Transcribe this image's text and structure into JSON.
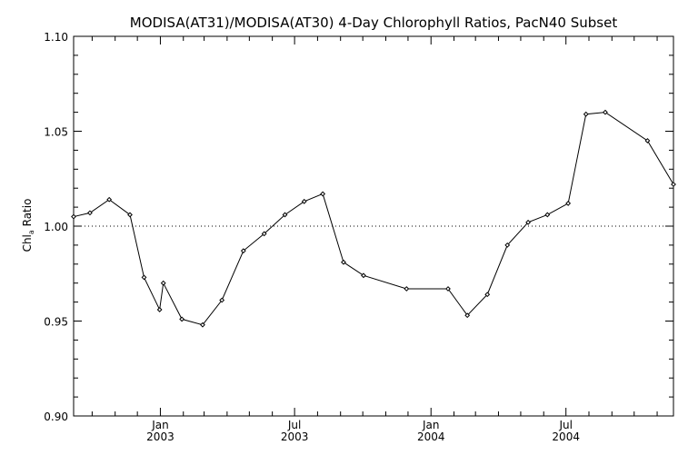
{
  "chart_data": {
    "type": "line",
    "title": "MODISA(AT31)/MODISA(AT30) 4-Day Chlorophyll Ratios, PacN40 Subset",
    "ylabel": {
      "base": "Chl",
      "sub": "a",
      "rest": " Ratio"
    },
    "xlabel": "",
    "xlim": [
      "2002-09-06",
      "2004-11-23"
    ],
    "ylim": [
      0.9,
      1.1
    ],
    "y_ticks": [
      "0.90",
      "0.95",
      "1.00",
      "1.05",
      "1.10"
    ],
    "x_ticks": [
      {
        "date": "2003-01-01",
        "month": "Jan",
        "year": "2003"
      },
      {
        "date": "2003-07-01",
        "month": "Jul",
        "year": "2003"
      },
      {
        "date": "2004-01-01",
        "month": "Jan",
        "year": "2004"
      },
      {
        "date": "2004-07-01",
        "month": "Jul",
        "year": "2004"
      }
    ],
    "reference_line": {
      "y": 1.0,
      "style": "dotted"
    },
    "grid": false,
    "series": [
      {
        "color": "#000000",
        "marker": "diamond",
        "points": [
          {
            "x": "2002-09-06",
            "y": 1.005
          },
          {
            "x": "2002-09-28",
            "y": 1.007
          },
          {
            "x": "2002-10-24",
            "y": 1.014
          },
          {
            "x": "2002-11-21",
            "y": 1.006
          },
          {
            "x": "2002-12-10",
            "y": 0.973
          },
          {
            "x": "2002-12-31",
            "y": 0.956
          },
          {
            "x": "2003-01-05",
            "y": 0.97
          },
          {
            "x": "2003-01-30",
            "y": 0.951
          },
          {
            "x": "2003-02-27",
            "y": 0.948
          },
          {
            "x": "2003-03-25",
            "y": 0.961
          },
          {
            "x": "2003-04-23",
            "y": 0.987
          },
          {
            "x": "2003-05-21",
            "y": 0.996
          },
          {
            "x": "2003-06-18",
            "y": 1.006
          },
          {
            "x": "2003-07-14",
            "y": 1.013
          },
          {
            "x": "2003-08-08",
            "y": 1.017
          },
          {
            "x": "2003-09-05",
            "y": 0.981
          },
          {
            "x": "2003-10-02",
            "y": 0.974
          },
          {
            "x": "2003-11-29",
            "y": 0.967
          },
          {
            "x": "2004-01-24",
            "y": 0.967
          },
          {
            "x": "2004-02-19",
            "y": 0.953
          },
          {
            "x": "2004-03-17",
            "y": 0.964
          },
          {
            "x": "2004-04-13",
            "y": 0.99
          },
          {
            "x": "2004-05-11",
            "y": 1.002
          },
          {
            "x": "2004-06-06",
            "y": 1.006
          },
          {
            "x": "2004-07-04",
            "y": 1.012
          },
          {
            "x": "2004-07-28",
            "y": 1.059
          },
          {
            "x": "2004-08-23",
            "y": 1.06
          },
          {
            "x": "2004-10-19",
            "y": 1.045
          },
          {
            "x": "2004-11-23",
            "y": 1.022
          }
        ]
      }
    ]
  }
}
